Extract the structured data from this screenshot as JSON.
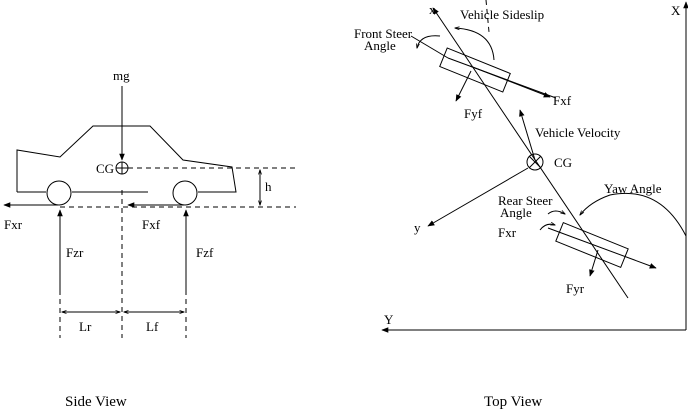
{
  "side_view": {
    "caption": "Side View",
    "labels": {
      "mg": "mg",
      "cg": "CG",
      "h": "h",
      "fxr": "Fxr",
      "fxf": "Fxf",
      "fzr": "Fzr",
      "fzf": "Fzf",
      "lr": "Lr",
      "lf": "Lf"
    }
  },
  "top_view": {
    "caption": "Top View",
    "labels": {
      "x_axis_upper": "X",
      "y_axis": "Y",
      "x_body": "x",
      "y_body": "y",
      "vehicle_sideslip": "Vehicle Sideslip",
      "front_steer_line1": "Front Steer",
      "front_steer_line2": "Angle",
      "fxf": "Fxf",
      "fyf": "Fyf",
      "vehicle_velocity": "Vehicle Velocity",
      "cg": "CG",
      "yaw_angle": "Yaw Angle",
      "rear_steer_line1": "Rear Steer",
      "rear_steer_line2": "Angle",
      "fxr": "Fxr",
      "fyr": "Fyr"
    }
  }
}
